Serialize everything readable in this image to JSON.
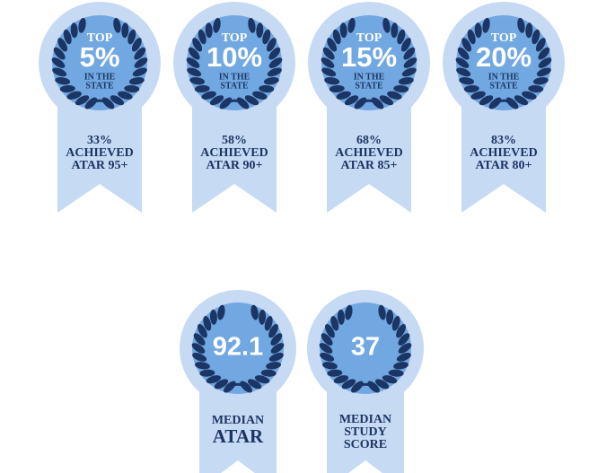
{
  "badges_top": [
    {
      "top": "TOP",
      "big": "5%",
      "sub": [
        "IN THE",
        "STATE"
      ],
      "ribbon": [
        "33%",
        "ACHIEVED",
        "ATAR 95+"
      ]
    },
    {
      "top": "TOP",
      "big": "10%",
      "sub": [
        "IN THE",
        "STATE"
      ],
      "ribbon": [
        "58%",
        "ACHIEVED",
        "ATAR 90+"
      ]
    },
    {
      "top": "TOP",
      "big": "15%",
      "sub": [
        "IN THE",
        "STATE"
      ],
      "ribbon": [
        "68%",
        "ACHIEVED",
        "ATAR 85+"
      ]
    },
    {
      "top": "TOP",
      "big": "20%",
      "sub": [
        "IN THE",
        "STATE"
      ],
      "ribbon": [
        "83%",
        "ACHIEVED",
        "ATAR 80+"
      ]
    }
  ],
  "badges_bottom": [
    {
      "big": "92.1",
      "ribbon": [
        "MEDIAN",
        "ATAR"
      ]
    },
    {
      "big": "37",
      "ribbon": [
        "MEDIAN",
        "STUDY",
        "SCORE"
      ]
    }
  ]
}
